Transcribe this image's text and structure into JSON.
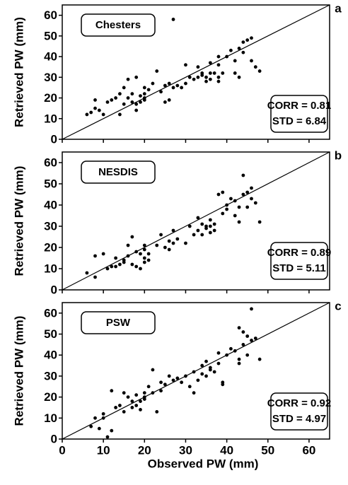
{
  "chart_data": [
    {
      "type": "scatter",
      "panel": "a",
      "label": "Chesters",
      "stats": [
        "CORR = 0.81",
        "STD = 6.84"
      ],
      "ylabel": "Retrieved PW (mm)",
      "xlim": [
        0,
        65
      ],
      "ylim": [
        0,
        65
      ],
      "xticks": [
        0,
        10,
        20,
        30,
        40,
        50,
        60
      ],
      "yticks": [
        0,
        10,
        20,
        30,
        40,
        50,
        60
      ],
      "color": "#000000",
      "x": [
        6,
        7,
        8,
        8,
        9,
        10,
        11,
        12,
        13,
        14,
        14,
        15,
        15,
        16,
        16,
        17,
        17,
        18,
        18,
        18,
        19,
        19,
        20,
        20,
        20,
        21,
        20,
        22,
        23,
        24,
        25,
        25,
        26,
        26,
        27,
        27,
        28,
        29,
        30,
        30,
        31,
        32,
        33,
        33,
        34,
        34,
        35,
        35,
        36,
        36,
        37,
        38,
        38,
        38,
        39,
        40,
        41,
        42,
        42,
        43,
        43,
        44,
        44,
        45,
        46,
        46,
        47,
        48,
        38,
        36
      ],
      "y": [
        12,
        13,
        19,
        15,
        14,
        12,
        18,
        19,
        20,
        12,
        22,
        25,
        17,
        29,
        20,
        18,
        22,
        30,
        17,
        14,
        21,
        18,
        20,
        22,
        19,
        24,
        25,
        27,
        33,
        23,
        26,
        18,
        19,
        27,
        58,
        25,
        26,
        25,
        27,
        36,
        30,
        29,
        35,
        30,
        31,
        32,
        30,
        28,
        29,
        37,
        32,
        40,
        28,
        30,
        32,
        40,
        43,
        38,
        32,
        44,
        30,
        47,
        42,
        48,
        49,
        38,
        35,
        33,
        36,
        32
      ]
    },
    {
      "type": "scatter",
      "panel": "b",
      "label": "NESDIS",
      "stats": [
        "CORR = 0.89",
        "STD = 5.11"
      ],
      "ylabel": "Retrieved PW (mm)",
      "xlim": [
        0,
        65
      ],
      "ylim": [
        0,
        65
      ],
      "xticks": [
        0,
        10,
        20,
        30,
        40,
        50,
        60
      ],
      "yticks": [
        0,
        10,
        20,
        30,
        40,
        50,
        60
      ],
      "color": "#000000",
      "x": [
        6,
        8,
        8,
        10,
        11,
        12,
        13,
        13,
        14,
        15,
        15,
        16,
        16,
        17,
        17,
        18,
        18,
        19,
        19,
        20,
        20,
        20,
        21,
        20,
        21,
        23,
        24,
        25,
        26,
        26,
        27,
        27,
        28,
        30,
        31,
        32,
        33,
        33,
        34,
        34,
        35,
        35,
        36,
        36,
        37,
        38,
        39,
        39,
        40,
        40,
        41,
        42,
        42,
        43,
        43,
        44,
        44,
        45,
        45,
        46,
        46,
        47,
        48,
        36,
        37
      ],
      "y": [
        8,
        16,
        6,
        17,
        10,
        11,
        11,
        15,
        12,
        13,
        14,
        21,
        16,
        12,
        25,
        11,
        18,
        10,
        17,
        19,
        15,
        13,
        14,
        21,
        17,
        21,
        26,
        20,
        23,
        19,
        28,
        22,
        24,
        22,
        30,
        26,
        28,
        34,
        31,
        26,
        30,
        29,
        33,
        27,
        28,
        45,
        46,
        36,
        40,
        38,
        43,
        42,
        35,
        32,
        39,
        54,
        45,
        39,
        46,
        48,
        43,
        41,
        32,
        30,
        31
      ]
    },
    {
      "type": "scatter",
      "panel": "c",
      "label": "PSW",
      "stats": [
        "CORR = 0.92",
        "STD = 4.97"
      ],
      "ylabel": "Retrieved PW (mm)",
      "xlabel": "Observed PW (mm)",
      "xlim": [
        0,
        65
      ],
      "ylim": [
        0,
        65
      ],
      "xticks": [
        0,
        10,
        20,
        30,
        40,
        50,
        60
      ],
      "yticks": [
        0,
        10,
        20,
        30,
        40,
        50,
        60
      ],
      "color": "#000000",
      "x": [
        7,
        8,
        9,
        10,
        10,
        11,
        12,
        12,
        13,
        14,
        15,
        15,
        16,
        17,
        17,
        18,
        18,
        19,
        19,
        20,
        20,
        20,
        21,
        22,
        22,
        23,
        24,
        24,
        25,
        26,
        27,
        28,
        29,
        30,
        31,
        32,
        32,
        33,
        34,
        34,
        35,
        35,
        36,
        36,
        37,
        38,
        38,
        39,
        39,
        40,
        41,
        42,
        43,
        43,
        44,
        44,
        45,
        45,
        46,
        46,
        47,
        48,
        43
      ],
      "y": [
        6,
        10,
        5,
        10,
        12,
        1,
        4,
        23,
        15,
        16,
        13,
        22,
        20,
        15,
        18,
        16,
        21,
        14,
        18,
        20,
        22,
        19,
        25,
        22,
        33,
        13,
        27,
        23,
        26,
        30,
        28,
        29,
        27,
        30,
        25,
        32,
        22,
        28,
        31,
        35,
        37,
        30,
        33,
        34,
        32,
        41,
        36,
        26,
        27,
        40,
        43,
        42,
        38,
        53,
        45,
        51,
        49,
        40,
        62,
        47,
        48,
        38,
        36
      ]
    }
  ]
}
